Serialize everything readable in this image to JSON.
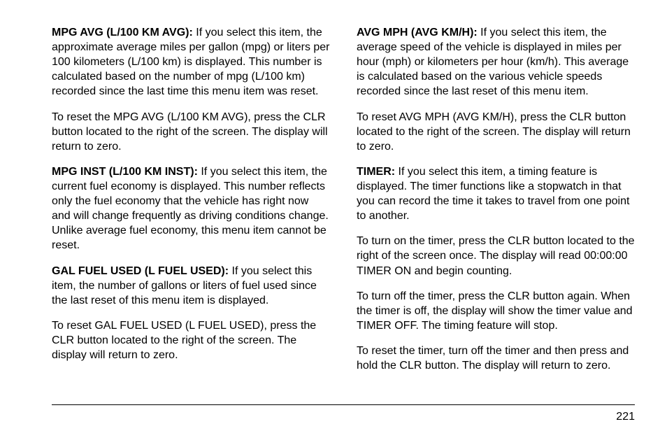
{
  "left": {
    "p1_heading": "MPG AVG (L/100 KM AVG):",
    "p1_body": " If you select this item, the approximate average miles per gallon (mpg) or liters per 100 kilometers (L/100 km) is displayed. This number is calculated based on the number of mpg (L/100 km) recorded since the last time this menu item was reset.",
    "p2": "To reset the MPG AVG (L/100 KM AVG), press the CLR button located to the right of the screen. The display will return to zero.",
    "p3_heading": "MPG INST (L/100 KM INST):",
    "p3_body": " If you select this item, the current fuel economy is displayed. This number reflects only the fuel economy that the vehicle has right now and will change frequently as driving conditions change. Unlike average fuel economy, this menu item cannot be reset.",
    "p4_heading": "GAL FUEL USED (L FUEL USED):",
    "p4_body": " If you select this item, the number of gallons or liters of fuel used since the last reset of this menu item is displayed.",
    "p5": "To reset GAL FUEL USED (L FUEL USED), press the CLR button located to the right of the screen. The display will return to zero."
  },
  "right": {
    "p1_heading": "AVG MPH (AVG KM/H):",
    "p1_body": " If you select this item, the average speed of the vehicle is displayed in miles per hour (mph) or kilometers per hour (km/h). This average is calculated based on the various vehicle speeds recorded since the last reset of this menu item.",
    "p2": "To reset AVG MPH (AVG KM/H), press the CLR button located to the right of the screen. The display will return to zero.",
    "p3_heading": "TIMER:",
    "p3_body": " If you select this item, a timing feature is displayed. The timer functions like a stopwatch in that you can record the time it takes to travel from one point to another.",
    "p4": "To turn on the timer, press the CLR button located to the right of the screen once. The display will read 00:00:00 TIMER ON and begin counting.",
    "p5": "To turn off the timer, press the CLR button again. When the timer is off, the display will show the timer value and TIMER OFF. The timing feature will stop.",
    "p6": "To reset the timer, turn off the timer and then press and hold the CLR button. The display will return to zero."
  },
  "page_number": "221"
}
